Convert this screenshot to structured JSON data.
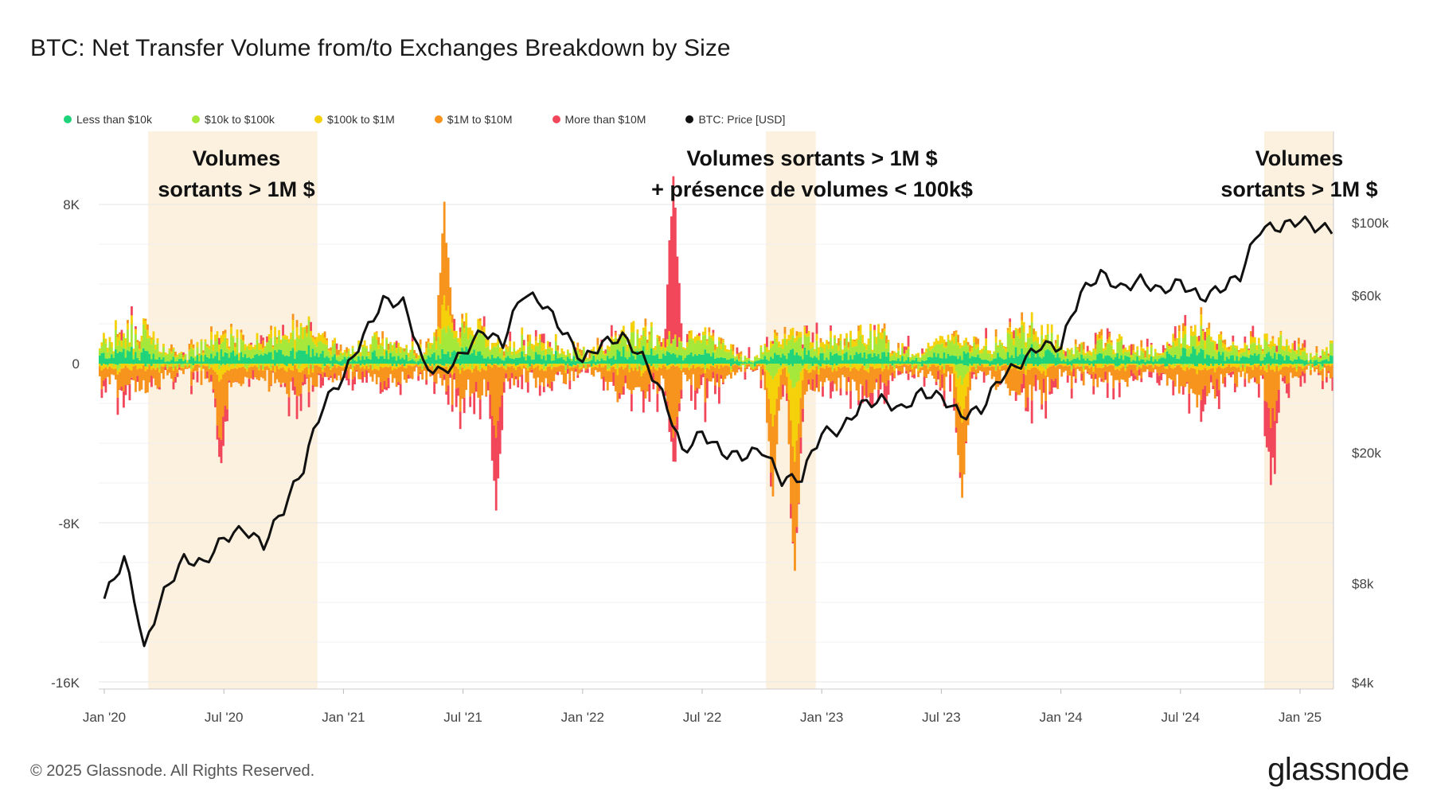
{
  "title": "BTC: Net Transfer Volume from/to Exchanges Breakdown by Size",
  "legend": [
    {
      "label": "Less than $10k",
      "color": "#1fd37a"
    },
    {
      "label": "$10k to $100k",
      "color": "#a5e83a"
    },
    {
      "label": "$100k to $1M",
      "color": "#f5d10a"
    },
    {
      "label": "$1M to $10M",
      "color": "#f7941d"
    },
    {
      "label": "More than $10M",
      "color": "#f2475b"
    },
    {
      "label": "BTC: Price [USD]",
      "color": "#111111"
    }
  ],
  "annotations": [
    {
      "lines": [
        "Volumes",
        "sortants > 1M $"
      ]
    },
    {
      "lines": [
        "Volumes sortants > 1M $",
        "+ présence de volumes < 100k$"
      ]
    },
    {
      "lines": [
        "Volumes",
        "sortants > 1M $"
      ]
    }
  ],
  "footer": "© 2025 Glassnode. All Rights Reserved.",
  "brand": "glassnode",
  "chart_data": {
    "type": "bar",
    "title": "BTC: Net Transfer Volume from/to Exchanges Breakdown by Size",
    "x_ticks": [
      "Jan '20",
      "Jul '20",
      "Jan '21",
      "Jul '21",
      "Jan '22",
      "Jul '22",
      "Jan '23",
      "Jul '23",
      "Jan '24",
      "Jul '24",
      "Jan '25"
    ],
    "y_left_ticks": [
      "8K",
      "0",
      "-8K",
      "-16K"
    ],
    "y_left_range": [
      -16000,
      8000
    ],
    "y_right_ticks": [
      "$100k",
      "$60k",
      "$20k",
      "$8k",
      "$4k"
    ],
    "y_right_scale": "log",
    "highlight_ranges": [
      [
        "2020-03",
        "2020-11"
      ],
      [
        "2022-10",
        "2022-12"
      ],
      [
        "2024-11",
        "2025-02"
      ]
    ],
    "series_net_flow": [
      {
        "name": "Less than $10k",
        "typical_range": [
          -300,
          1200
        ]
      },
      {
        "name": "$10k to $100k",
        "typical_range": [
          -800,
          2000
        ]
      },
      {
        "name": "$100k to $1M",
        "typical_range": [
          -1500,
          1500
        ]
      },
      {
        "name": "$1M to $10M",
        "typical_range": [
          -3000,
          1000
        ]
      },
      {
        "name": "More than $10M",
        "typical_range": [
          -6500,
          8500
        ]
      }
    ],
    "btc_price_usd": {
      "dates": [
        "2020-01",
        "2020-02",
        "2020-03",
        "2020-04",
        "2020-05",
        "2020-06",
        "2020-07",
        "2020-08",
        "2020-09",
        "2020-10",
        "2020-11",
        "2020-12",
        "2021-01",
        "2021-02",
        "2021-03",
        "2021-04",
        "2021-05",
        "2021-06",
        "2021-07",
        "2021-08",
        "2021-09",
        "2021-10",
        "2021-11",
        "2021-12",
        "2022-01",
        "2022-02",
        "2022-03",
        "2022-04",
        "2022-05",
        "2022-06",
        "2022-07",
        "2022-08",
        "2022-09",
        "2022-10",
        "2022-11",
        "2022-12",
        "2023-01",
        "2023-02",
        "2023-03",
        "2023-04",
        "2023-05",
        "2023-06",
        "2023-07",
        "2023-08",
        "2023-09",
        "2023-10",
        "2023-11",
        "2023-12",
        "2024-01",
        "2024-02",
        "2024-03",
        "2024-04",
        "2024-05",
        "2024-06",
        "2024-07",
        "2024-08",
        "2024-09",
        "2024-10",
        "2024-11",
        "2024-12",
        "2025-01",
        "2025-02"
      ],
      "values": [
        7200,
        9500,
        5000,
        7500,
        9500,
        9200,
        11000,
        11700,
        10500,
        13500,
        18000,
        28000,
        34000,
        45000,
        58000,
        57000,
        37000,
        35000,
        40000,
        47000,
        43000,
        61000,
        57000,
        47000,
        38000,
        43000,
        45000,
        39000,
        30000,
        20000,
        23000,
        20000,
        19500,
        20500,
        16500,
        16800,
        23000,
        23500,
        28000,
        29000,
        27000,
        30500,
        29500,
        26000,
        27000,
        34000,
        37500,
        42500,
        42000,
        61000,
        70000,
        63000,
        67000,
        62000,
        66000,
        59000,
        63000,
        69000,
        96000,
        97000,
        102000,
        96000
      ]
    }
  }
}
